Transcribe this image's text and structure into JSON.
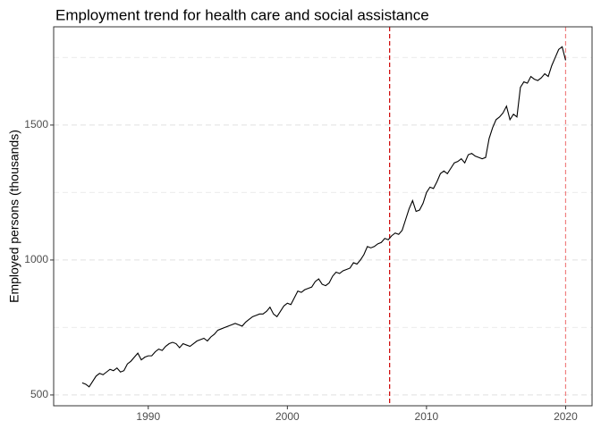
{
  "chart_data": {
    "type": "line",
    "title": "Employment trend for health care and social assistance",
    "y_label": "Employed persons (thousands)",
    "xlim": [
      1983.2,
      2021.9
    ],
    "xticks": [
      1990,
      2000,
      2010,
      2020
    ],
    "ylim": [
      460,
      1864
    ],
    "yticks": [
      500,
      1000,
      1500
    ],
    "y_minor_grid": [
      750,
      1250,
      1750
    ],
    "grid": true,
    "vlines": [
      {
        "x": 2007.35,
        "color": "#cc0000"
      },
      {
        "x": 2020,
        "color": "#f08080"
      }
    ],
    "series": [
      {
        "name": "Employment",
        "color": "#000000",
        "x": [
          1985.25,
          1985.5,
          1985.75,
          1986,
          1986.25,
          1986.5,
          1986.75,
          1987,
          1987.25,
          1987.5,
          1987.75,
          1988,
          1988.25,
          1988.5,
          1988.75,
          1989,
          1989.25,
          1989.5,
          1989.75,
          1990,
          1990.25,
          1990.5,
          1990.75,
          1991,
          1991.25,
          1991.5,
          1991.75,
          1992,
          1992.25,
          1992.5,
          1992.75,
          1993,
          1993.25,
          1993.5,
          1993.75,
          1994,
          1994.25,
          1994.5,
          1994.75,
          1995,
          1995.25,
          1995.5,
          1995.75,
          1996,
          1996.25,
          1996.5,
          1996.75,
          1997,
          1997.25,
          1997.5,
          1997.75,
          1998,
          1998.25,
          1998.5,
          1998.75,
          1999,
          1999.25,
          1999.5,
          1999.75,
          2000,
          2000.25,
          2000.5,
          2000.75,
          2001,
          2001.25,
          2001.5,
          2001.75,
          2002,
          2002.25,
          2002.5,
          2002.75,
          2003,
          2003.25,
          2003.5,
          2003.75,
          2004,
          2004.25,
          2004.5,
          2004.75,
          2005,
          2005.25,
          2005.5,
          2005.75,
          2006,
          2006.25,
          2006.5,
          2006.75,
          2007,
          2007.25,
          2007.5,
          2007.75,
          2008,
          2008.25,
          2008.5,
          2008.75,
          2009,
          2009.25,
          2009.5,
          2009.75,
          2010,
          2010.25,
          2010.5,
          2010.75,
          2011,
          2011.25,
          2011.5,
          2011.75,
          2012,
          2012.25,
          2012.5,
          2012.75,
          2013,
          2013.25,
          2013.5,
          2013.75,
          2014,
          2014.25,
          2014.5,
          2014.75,
          2015,
          2015.25,
          2015.5,
          2015.75,
          2016,
          2016.25,
          2016.5,
          2016.75,
          2017,
          2017.25,
          2017.5,
          2017.75,
          2018,
          2018.25,
          2018.5,
          2018.75,
          2019,
          2019.25,
          2019.5,
          2019.75,
          2020
        ],
        "values": [
          545,
          540,
          530,
          550,
          570,
          580,
          575,
          585,
          595,
          590,
          600,
          585,
          590,
          615,
          625,
          640,
          655,
          630,
          640,
          645,
          645,
          660,
          670,
          665,
          680,
          690,
          695,
          690,
          675,
          690,
          685,
          680,
          690,
          700,
          705,
          710,
          700,
          715,
          725,
          740,
          745,
          750,
          755,
          760,
          765,
          760,
          755,
          770,
          780,
          790,
          795,
          800,
          800,
          810,
          825,
          800,
          790,
          810,
          830,
          840,
          835,
          860,
          885,
          880,
          890,
          895,
          900,
          920,
          930,
          910,
          905,
          915,
          940,
          955,
          950,
          960,
          965,
          970,
          990,
          985,
          1000,
          1020,
          1050,
          1045,
          1050,
          1060,
          1065,
          1080,
          1075,
          1090,
          1100,
          1095,
          1110,
          1150,
          1190,
          1220,
          1180,
          1185,
          1210,
          1250,
          1270,
          1265,
          1290,
          1320,
          1330,
          1320,
          1340,
          1360,
          1365,
          1375,
          1360,
          1390,
          1395,
          1385,
          1380,
          1375,
          1380,
          1450,
          1490,
          1520,
          1530,
          1545,
          1570,
          1520,
          1540,
          1530,
          1640,
          1660,
          1655,
          1680,
          1670,
          1665,
          1675,
          1690,
          1680,
          1720,
          1750,
          1780,
          1790,
          1740
        ]
      }
    ]
  }
}
